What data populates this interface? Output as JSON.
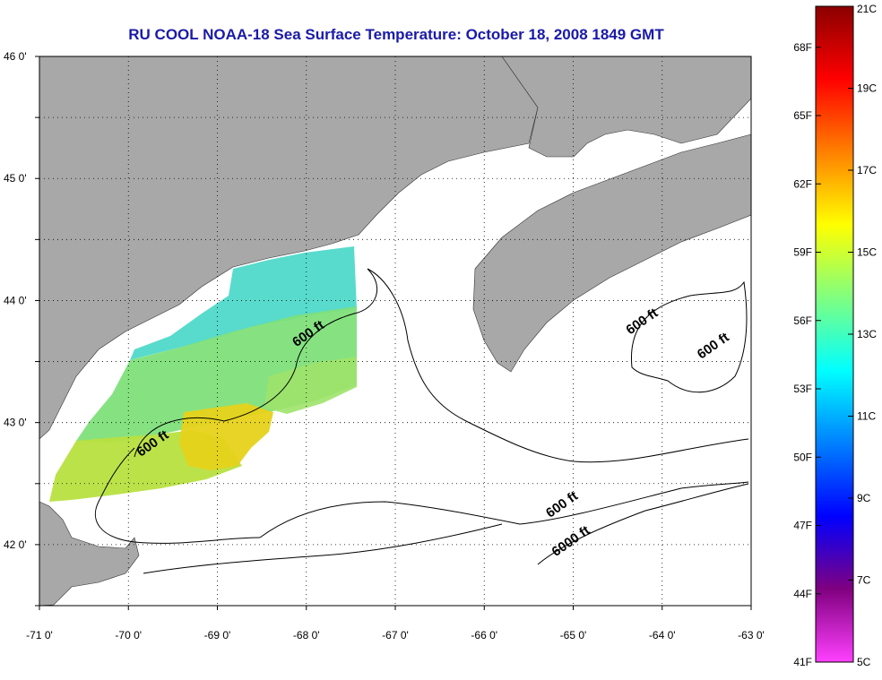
{
  "title": "RU COOL  NOAA-18  Sea Surface Temperature:  October 18, 2008 1849 GMT",
  "colors": {
    "title": "#1a1aa8",
    "land": "#a8a8a8",
    "grid": "#000000",
    "no_data": "#ffffff"
  },
  "axes": {
    "lon_ticks": [
      "-71 0'",
      "-70 0'",
      "-69 0'",
      "-68 0'",
      "-67 0'",
      "-66 0'",
      "-65 0'",
      "-64 0'",
      "-63 0'"
    ],
    "lat_ticks": [
      "46 0'",
      "45 0'",
      "44 0'",
      "43 0'",
      "42 0'"
    ],
    "lon_range": [
      -71,
      -63
    ],
    "lat_range": [
      41.5,
      46
    ],
    "grid": "dotted"
  },
  "contour_labels": [
    {
      "text": "600 ft",
      "lon": -67.95,
      "lat": 43.7
    },
    {
      "text": "600 ft",
      "lon": -69.7,
      "lat": 42.8
    },
    {
      "text": "600 ft",
      "lon": -64.2,
      "lat": 43.8
    },
    {
      "text": "600 ft",
      "lon": -63.4,
      "lat": 43.6
    },
    {
      "text": "600 ft",
      "lon": -65.1,
      "lat": 42.3
    },
    {
      "text": "6000 ft",
      "lon": -65.0,
      "lat": 42.0
    }
  ],
  "colorbar": {
    "f_labels": [
      "68F",
      "65F",
      "62F",
      "59F",
      "56F",
      "53F",
      "50F",
      "47F",
      "44F",
      "41F"
    ],
    "c_labels": [
      "21C",
      "19C",
      "17C",
      "15C",
      "13C",
      "11C",
      "9C",
      "7C",
      "5C"
    ],
    "c_range": [
      5,
      21
    ],
    "gradient": [
      "#8b0000",
      "#ff0000",
      "#ff8000",
      "#ffff00",
      "#80ff80",
      "#00ffff",
      "#0080ff",
      "#0000ff",
      "#800080",
      "#ff40ff"
    ]
  },
  "sst_patches": [
    {
      "label": "north-patch",
      "color": "#4fd9c9"
    },
    {
      "label": "central-patch",
      "color": "#7fe07a"
    },
    {
      "label": "warm-core",
      "color": "#e6d21a"
    },
    {
      "label": "southwest-patch",
      "color": "#b8e040"
    }
  ]
}
